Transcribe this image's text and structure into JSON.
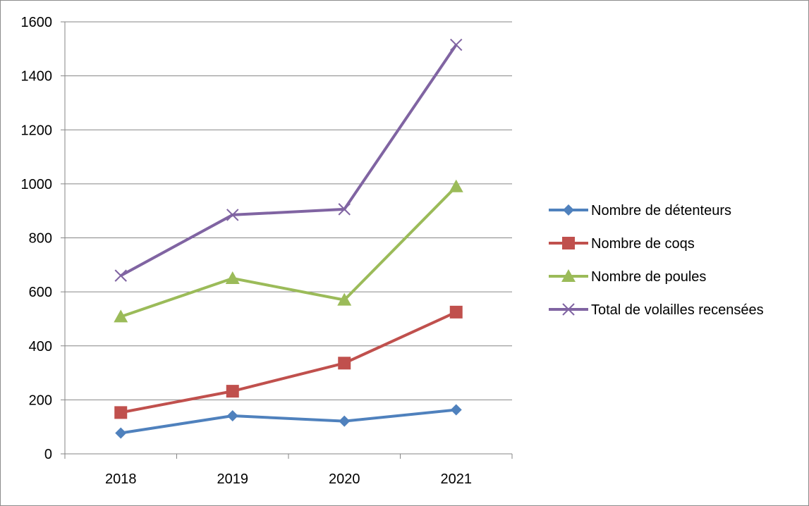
{
  "chart_data": {
    "type": "line",
    "title": "",
    "xlabel": "",
    "ylabel": "",
    "categories": [
      "2018",
      "2019",
      "2020",
      "2021"
    ],
    "ylim": [
      0,
      1600
    ],
    "yticks": [
      0,
      200,
      400,
      600,
      800,
      1000,
      1200,
      1400,
      1600
    ],
    "grid": true,
    "legend_position": "right",
    "series": [
      {
        "name": "Nombre de détenteurs",
        "color": "#4f81bd",
        "marker": "diamond",
        "values": [
          77,
          141,
          121,
          163
        ]
      },
      {
        "name": "Nombre de coqs",
        "color": "#c0504d",
        "marker": "square",
        "values": [
          153,
          232,
          336,
          525
        ]
      },
      {
        "name": "Nombre de poules",
        "color": "#9bbb59",
        "marker": "triangle",
        "values": [
          508,
          650,
          570,
          990
        ]
      },
      {
        "name": "Total de volailles recensées",
        "color": "#8064a2",
        "marker": "x",
        "values": [
          660,
          885,
          906,
          1515
        ]
      }
    ]
  }
}
